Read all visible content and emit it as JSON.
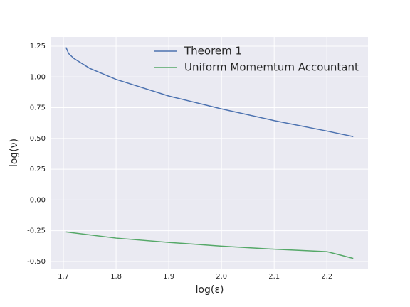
{
  "chart_data": {
    "type": "line",
    "xlabel": "log(ε)",
    "ylabel": "log(ν)",
    "series": [
      {
        "name": "Theorem 1",
        "color": "#4c72b0",
        "x": [
          1.705,
          1.71,
          1.72,
          1.75,
          1.8,
          1.9,
          2.0,
          2.1,
          2.2,
          2.25
        ],
        "values": [
          1.24,
          1.19,
          1.15,
          1.07,
          0.98,
          0.845,
          0.74,
          0.645,
          0.56,
          0.515
        ]
      },
      {
        "name": "Uniform Momemtum Accountant",
        "color": "#55a868",
        "x": [
          1.705,
          1.8,
          1.9,
          2.0,
          2.1,
          2.2,
          2.205,
          2.25
        ],
        "values": [
          -0.26,
          -0.31,
          -0.345,
          -0.375,
          -0.4,
          -0.42,
          -0.425,
          -0.475
        ]
      }
    ],
    "xlim": [
      1.677,
      2.278
    ],
    "ylim": [
      -0.558,
      1.325
    ],
    "xticks": [
      1.7,
      1.8,
      1.9,
      {
        "value": 2.0,
        "label": "2.0"
      },
      2.1,
      2.2
    ],
    "yticks": [
      1.25,
      {
        "value": 1.0,
        "label": "1.00"
      },
      0.75,
      {
        "value": 0.5,
        "label": "0.50"
      },
      0.25,
      {
        "value": 0,
        "label": "0.00"
      },
      -0.25,
      {
        "value": -0.5,
        "label": "-0.50"
      }
    ],
    "grid": true,
    "legend": "upper center"
  }
}
